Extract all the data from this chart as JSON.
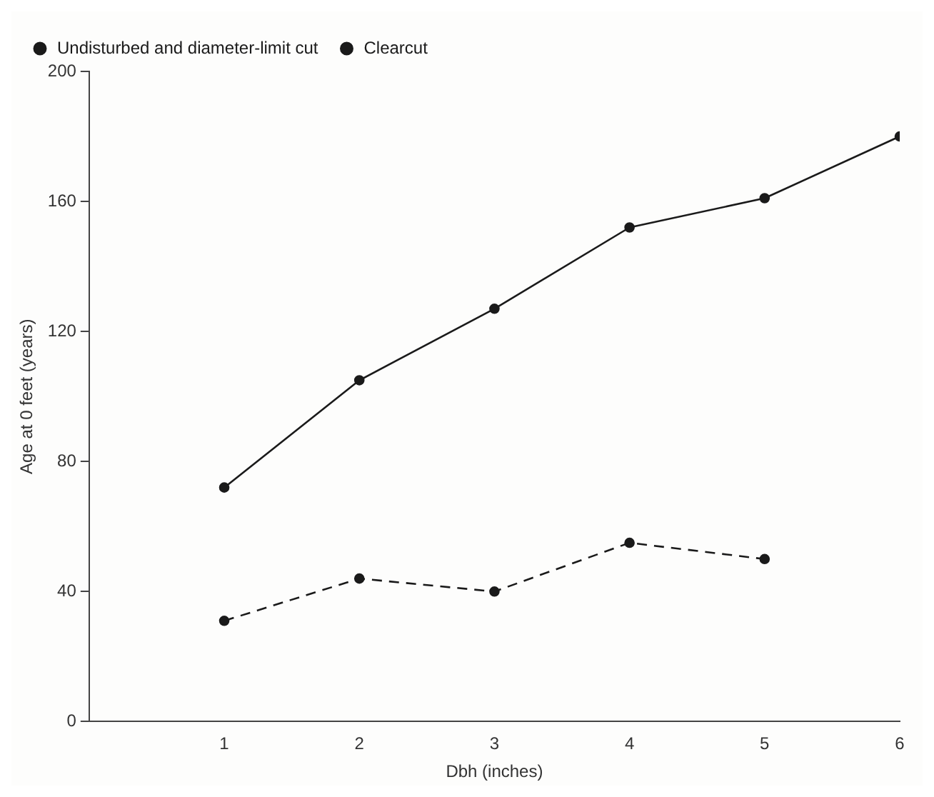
{
  "chart_data": {
    "type": "line",
    "xlabel": "Dbh (inches)",
    "ylabel": "Age at 0 feet (years)",
    "x": [
      1,
      2,
      3,
      4,
      5,
      6
    ],
    "series": [
      {
        "name": "Undisturbed and diameter-limit cut",
        "color": "#1a1a1a",
        "values": [
          72,
          105,
          127,
          152,
          161,
          180
        ],
        "line_style": "solid"
      },
      {
        "name": "Clearcut",
        "color": "#1a1a1a",
        "values": [
          31,
          44,
          40,
          55,
          50,
          null
        ],
        "line_style": "dashed"
      }
    ],
    "xlim": [
      0,
      6
    ],
    "xticks": [
      1,
      2,
      3,
      4,
      5,
      6
    ],
    "ylim": [
      0,
      200
    ],
    "yticks": [
      0,
      40,
      80,
      120,
      160,
      200
    ],
    "grid": false,
    "legend": "top left",
    "marker": "circle"
  }
}
